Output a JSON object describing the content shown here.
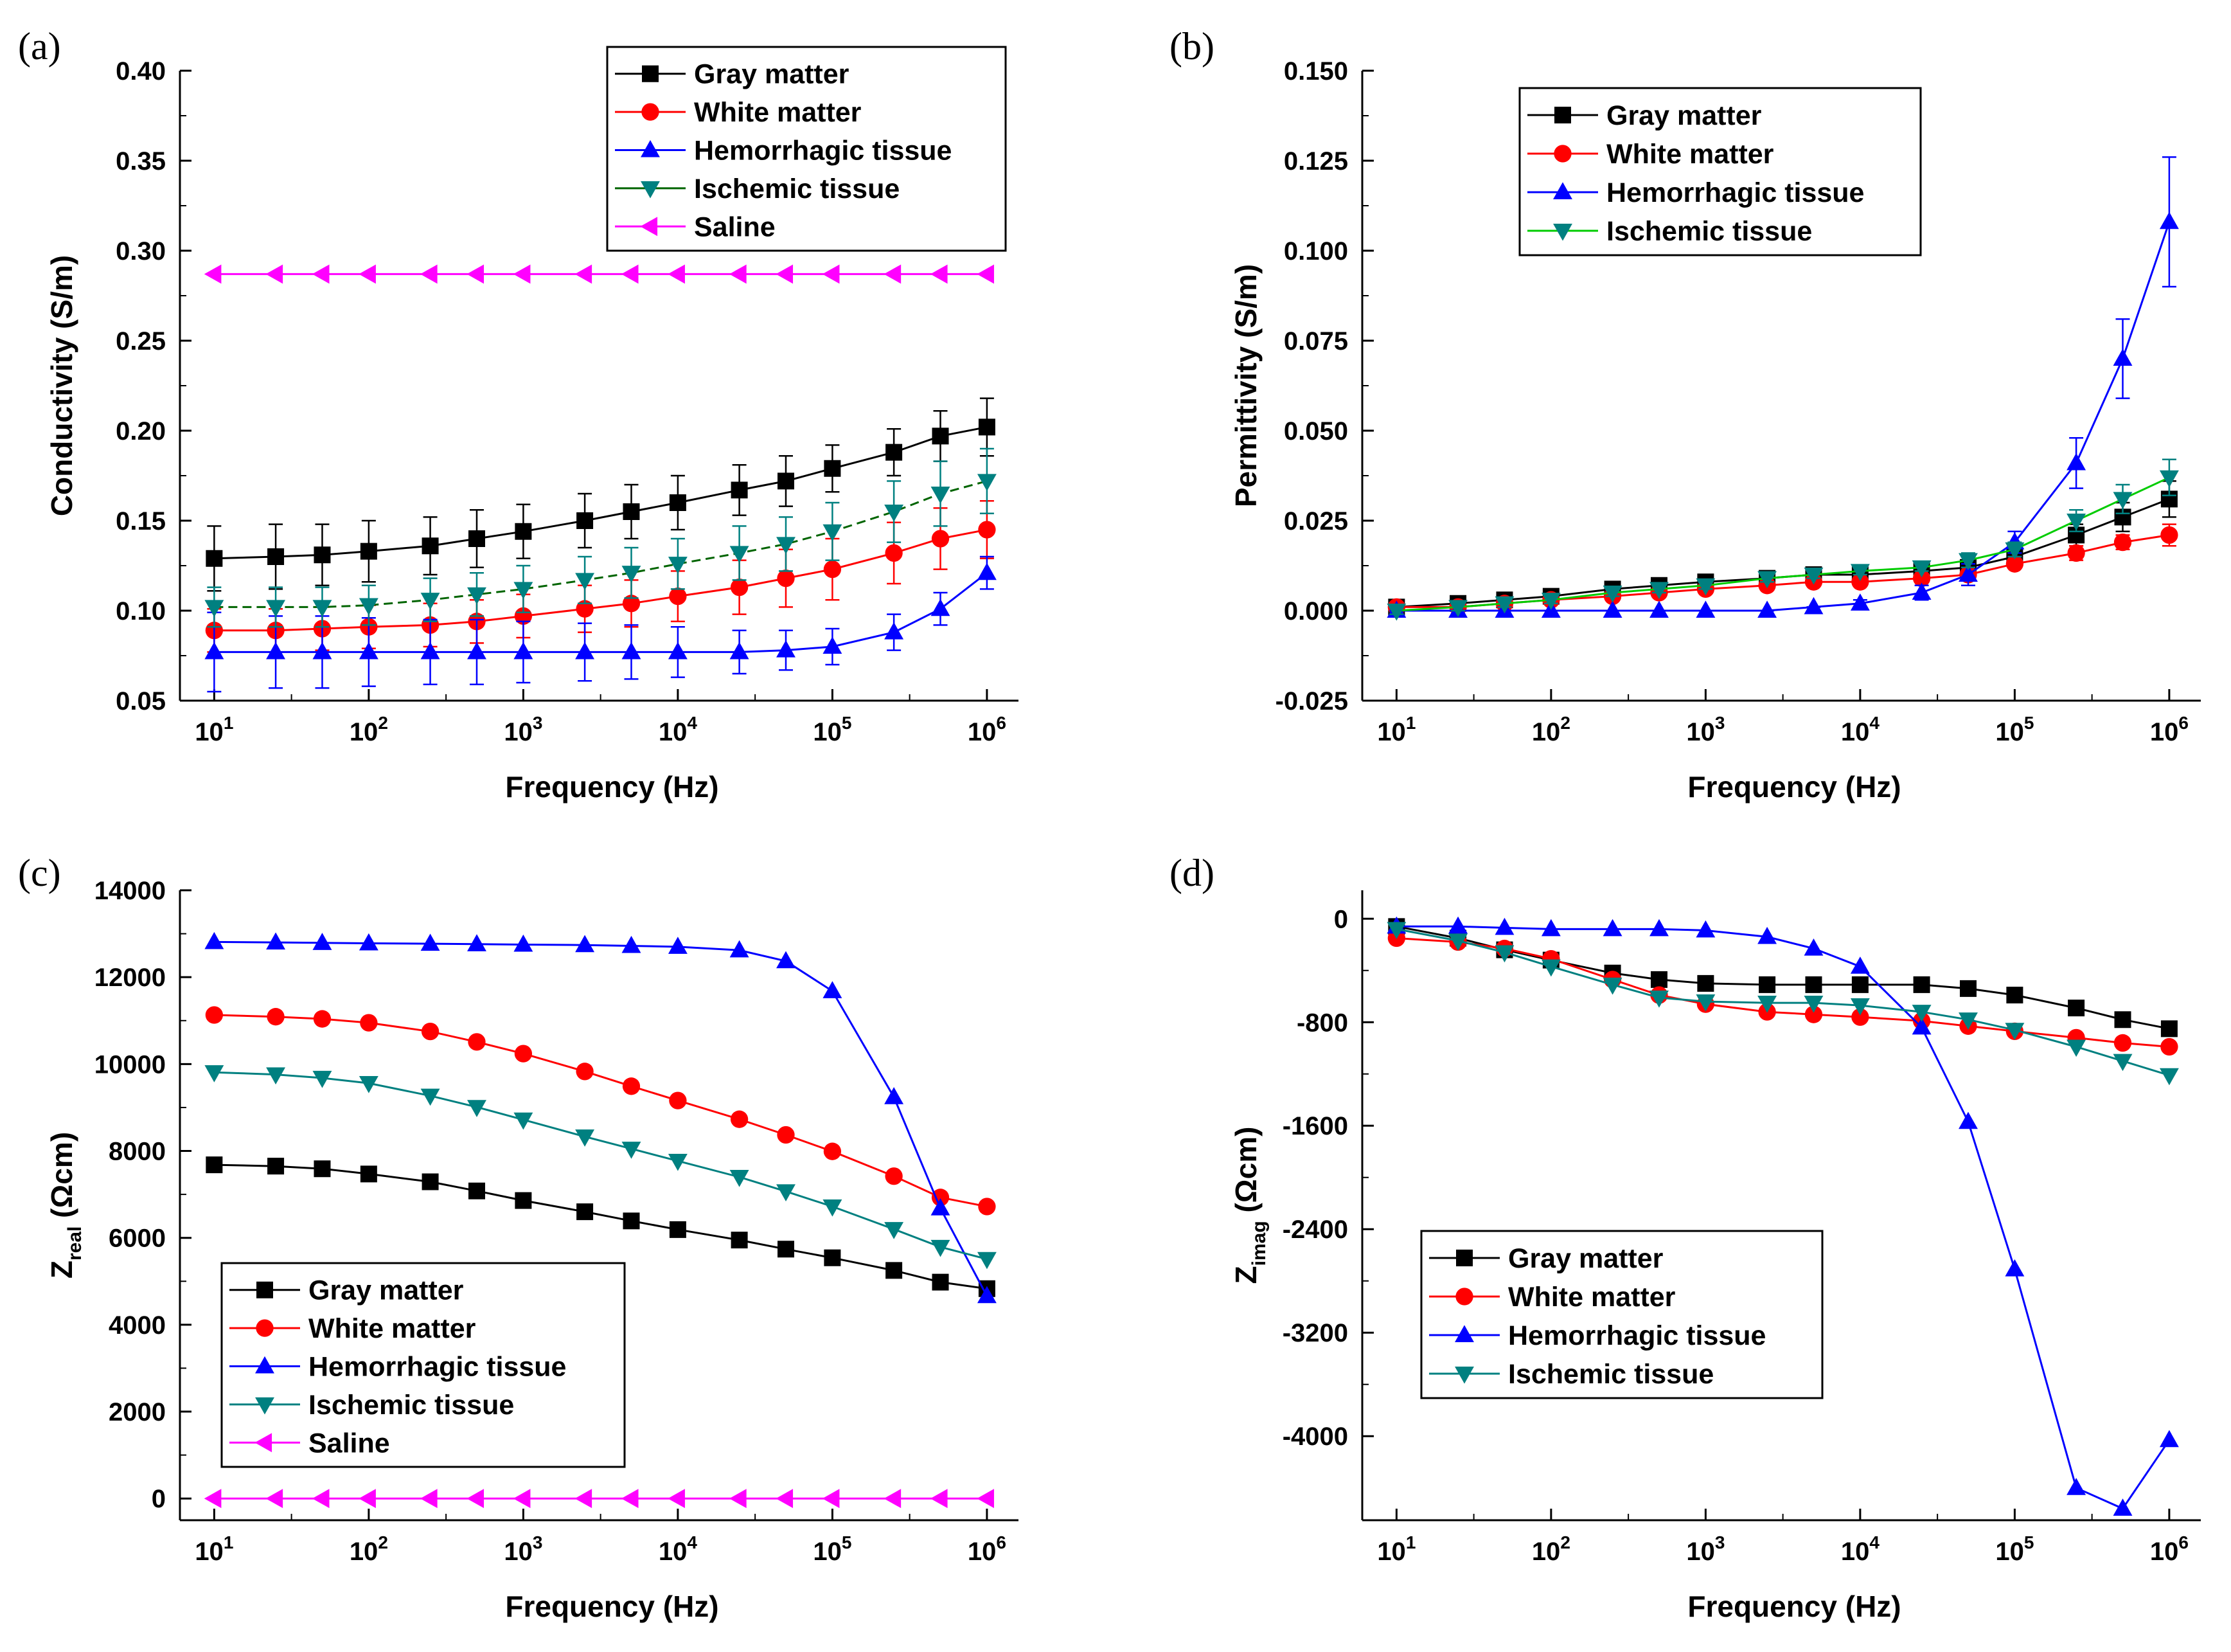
{
  "figure_title": "",
  "chart_data": [
    {
      "id": "a",
      "panel_label": "(a)",
      "type": "line",
      "xscale": "log",
      "xlim": [
        6,
        1600000
      ],
      "x": [
        10,
        25,
        50,
        100,
        250,
        500,
        1000,
        2500,
        5000,
        10000,
        25000,
        50000,
        100000,
        250000,
        500000,
        1000000
      ],
      "xticks": [
        10,
        100,
        1000,
        10000,
        100000,
        1000000
      ],
      "xtick_labels": [
        {
          "base": "10",
          "exp": "1"
        },
        {
          "base": "10",
          "exp": "2"
        },
        {
          "base": "10",
          "exp": "3"
        },
        {
          "base": "10",
          "exp": "4"
        },
        {
          "base": "10",
          "exp": "5"
        },
        {
          "base": "10",
          "exp": "6"
        }
      ],
      "ylim": [
        0.05,
        0.4
      ],
      "yticks": [
        0.05,
        0.1,
        0.15,
        0.2,
        0.25,
        0.3,
        0.35,
        0.4
      ],
      "ytick_labels": [
        "0.05",
        "0.10",
        "0.15",
        "0.20",
        "0.25",
        "0.30",
        "0.35",
        "0.40"
      ],
      "xlabel": "Frequency (Hz)",
      "ylabel": {
        "main": "Conductivity (S/m)",
        "sub": ""
      },
      "legend_position": "top-right",
      "series": [
        {
          "name": "Gray matter",
          "color": "#000000",
          "marker": "square",
          "values": [
            0.129,
            0.13,
            0.131,
            0.133,
            0.136,
            0.14,
            0.144,
            0.15,
            0.155,
            0.16,
            0.167,
            0.172,
            0.179,
            0.188,
            0.197,
            0.202
          ],
          "err": [
            0.018,
            0.018,
            0.017,
            0.017,
            0.016,
            0.016,
            0.015,
            0.015,
            0.015,
            0.015,
            0.014,
            0.014,
            0.013,
            0.013,
            0.014,
            0.016
          ]
        },
        {
          "name": "White matter",
          "color": "#ff0000",
          "marker": "circle",
          "values": [
            0.089,
            0.089,
            0.09,
            0.091,
            0.092,
            0.094,
            0.097,
            0.101,
            0.104,
            0.108,
            0.113,
            0.118,
            0.123,
            0.132,
            0.14,
            0.145
          ],
          "err": [
            0.012,
            0.012,
            0.012,
            0.012,
            0.012,
            0.012,
            0.012,
            0.013,
            0.013,
            0.014,
            0.015,
            0.016,
            0.017,
            0.017,
            0.017,
            0.016
          ]
        },
        {
          "name": "Hemorrhagic  tissue",
          "color": "#0000ff",
          "marker": "triangle-up",
          "values": [
            0.077,
            0.077,
            0.077,
            0.077,
            0.077,
            0.077,
            0.077,
            0.077,
            0.077,
            0.077,
            0.077,
            0.078,
            0.08,
            0.088,
            0.101,
            0.121
          ],
          "err": [
            0.022,
            0.02,
            0.02,
            0.019,
            0.018,
            0.018,
            0.017,
            0.016,
            0.015,
            0.014,
            0.012,
            0.011,
            0.01,
            0.01,
            0.009,
            0.009
          ]
        },
        {
          "name": "Ischemic tissue",
          "color": "#008080",
          "line_color": "#006400",
          "line_style": "dashed",
          "marker": "triangle-down",
          "values": [
            0.102,
            0.102,
            0.102,
            0.103,
            0.106,
            0.109,
            0.112,
            0.117,
            0.121,
            0.126,
            0.132,
            0.137,
            0.144,
            0.155,
            0.165,
            0.172
          ],
          "err": [
            0.011,
            0.011,
            0.011,
            0.011,
            0.012,
            0.012,
            0.013,
            0.013,
            0.014,
            0.014,
            0.015,
            0.015,
            0.016,
            0.017,
            0.018,
            0.018
          ]
        },
        {
          "name": "Saline",
          "color": "#ff00ff",
          "marker": "triangle-left",
          "values": [
            0.287,
            0.287,
            0.287,
            0.287,
            0.287,
            0.287,
            0.287,
            0.287,
            0.287,
            0.287,
            0.287,
            0.287,
            0.287,
            0.287,
            0.287,
            0.287
          ],
          "err": []
        }
      ]
    },
    {
      "id": "b",
      "panel_label": "(b)",
      "type": "line",
      "xscale": "log",
      "xlim": [
        6,
        1600000
      ],
      "x": [
        10,
        25,
        50,
        100,
        250,
        500,
        1000,
        2500,
        5000,
        10000,
        25000,
        50000,
        100000,
        250000,
        500000,
        1000000
      ],
      "xticks": [
        10,
        100,
        1000,
        10000,
        100000,
        1000000
      ],
      "xtick_labels": [
        {
          "base": "10",
          "exp": "1"
        },
        {
          "base": "10",
          "exp": "2"
        },
        {
          "base": "10",
          "exp": "3"
        },
        {
          "base": "10",
          "exp": "4"
        },
        {
          "base": "10",
          "exp": "5"
        },
        {
          "base": "10",
          "exp": "6"
        }
      ],
      "ylim": [
        -0.025,
        0.15
      ],
      "yticks": [
        -0.025,
        0.0,
        0.025,
        0.05,
        0.075,
        0.1,
        0.125,
        0.15
      ],
      "ytick_labels": [
        "-0.025",
        "0.000",
        "0.025",
        "0.050",
        "0.075",
        "0.100",
        "0.125",
        "0.150"
      ],
      "xlabel": "Frequency (Hz)",
      "ylabel": {
        "main": "Permittivity (S/m)",
        "sub": ""
      },
      "legend_position": "top-left",
      "series": [
        {
          "name": "Gray matter",
          "color": "#000000",
          "marker": "square",
          "values": [
            0.001,
            0.002,
            0.003,
            0.004,
            0.006,
            0.007,
            0.008,
            0.009,
            0.01,
            0.01,
            0.011,
            0.012,
            0.015,
            0.021,
            0.026,
            0.031
          ],
          "err": [
            0.001,
            0.001,
            0.001,
            0.001,
            0.001,
            0.001,
            0.001,
            0.001,
            0.001,
            0.001,
            0.001,
            0.002,
            0.002,
            0.003,
            0.004,
            0.005
          ]
        },
        {
          "name": "White matter",
          "color": "#ff0000",
          "marker": "circle",
          "values": [
            0.001,
            0.001,
            0.002,
            0.003,
            0.004,
            0.005,
            0.006,
            0.007,
            0.008,
            0.008,
            0.009,
            0.01,
            0.013,
            0.016,
            0.019,
            0.021
          ],
          "err": [
            0.001,
            0.001,
            0.001,
            0.001,
            0.001,
            0.001,
            0.001,
            0.001,
            0.001,
            0.001,
            0.001,
            0.001,
            0.001,
            0.002,
            0.002,
            0.003
          ]
        },
        {
          "name": "Hemorrhagic  tissue",
          "color": "#0000ff",
          "marker": "triangle-up",
          "values": [
            0.0,
            0.0,
            0.0,
            0.0,
            0.0,
            0.0,
            0.0,
            0.0,
            0.001,
            0.002,
            0.005,
            0.01,
            0.019,
            0.041,
            0.07,
            0.108
          ],
          "err": [
            0.0,
            0.0,
            0.0,
            0.0,
            0.0,
            0.0,
            0.0,
            0.0,
            0.0,
            0.001,
            0.002,
            0.003,
            0.003,
            0.007,
            0.011,
            0.018
          ]
        },
        {
          "name": "Ischemic tissue",
          "color": "#008080",
          "line_color": "#00cc00",
          "marker": "triangle-down",
          "values": [
            0.0,
            0.001,
            0.002,
            0.003,
            0.005,
            0.006,
            0.007,
            0.009,
            0.01,
            0.011,
            0.012,
            0.014,
            0.017,
            0.025,
            0.031,
            0.037
          ],
          "err": [
            0.001,
            0.001,
            0.001,
            0.001,
            0.001,
            0.001,
            0.001,
            0.001,
            0.001,
            0.001,
            0.001,
            0.002,
            0.002,
            0.003,
            0.004,
            0.005
          ]
        }
      ]
    },
    {
      "id": "c",
      "panel_label": "(c)",
      "type": "line",
      "xscale": "log",
      "xlim": [
        6,
        1600000
      ],
      "x": [
        10,
        25,
        50,
        100,
        250,
        500,
        1000,
        2500,
        5000,
        10000,
        25000,
        50000,
        100000,
        250000,
        500000,
        1000000
      ],
      "xticks": [
        10,
        100,
        1000,
        10000,
        100000,
        1000000
      ],
      "xtick_labels": [
        {
          "base": "10",
          "exp": "1"
        },
        {
          "base": "10",
          "exp": "2"
        },
        {
          "base": "10",
          "exp": "3"
        },
        {
          "base": "10",
          "exp": "4"
        },
        {
          "base": "10",
          "exp": "5"
        },
        {
          "base": "10",
          "exp": "6"
        }
      ],
      "ylim": [
        -500,
        14000
      ],
      "yticks": [
        0,
        2000,
        4000,
        6000,
        8000,
        10000,
        12000,
        14000
      ],
      "ytick_labels": [
        "0",
        "2000",
        "4000",
        "6000",
        "8000",
        "10000",
        "12000",
        "14000"
      ],
      "xlabel": "Frequency (Hz)",
      "ylabel": {
        "main": "Z",
        "sub": "real",
        "unit": " (Ωcm)"
      },
      "legend_position": "bottom-left",
      "series": [
        {
          "name": "Gray matter",
          "color": "#000000",
          "marker": "square",
          "values": [
            7680,
            7650,
            7590,
            7470,
            7290,
            7080,
            6860,
            6600,
            6390,
            6190,
            5950,
            5740,
            5540,
            5250,
            4980,
            4830
          ],
          "err": []
        },
        {
          "name": "White matter",
          "color": "#ff0000",
          "marker": "circle",
          "values": [
            11130,
            11090,
            11040,
            10950,
            10750,
            10510,
            10240,
            9830,
            9490,
            9160,
            8730,
            8370,
            7990,
            7420,
            6930,
            6720
          ],
          "err": []
        },
        {
          "name": "Hemorrhagic  tissue",
          "color": "#0000ff",
          "marker": "triangle-up",
          "values": [
            12810,
            12800,
            12790,
            12780,
            12770,
            12760,
            12750,
            12740,
            12720,
            12700,
            12620,
            12370,
            11680,
            9240,
            6680,
            4660
          ],
          "err": []
        },
        {
          "name": "Ischemic tissue",
          "color": "#008080",
          "marker": "triangle-down",
          "values": [
            9810,
            9760,
            9680,
            9560,
            9270,
            9010,
            8720,
            8330,
            8050,
            7770,
            7400,
            7070,
            6720,
            6200,
            5790,
            5510
          ],
          "err": []
        },
        {
          "name": "Saline",
          "color": "#ff00ff",
          "marker": "triangle-left",
          "values": [
            0,
            0,
            0,
            0,
            0,
            0,
            0,
            0,
            0,
            0,
            0,
            0,
            0,
            0,
            0,
            0
          ],
          "err": []
        }
      ]
    },
    {
      "id": "d",
      "panel_label": "(d)",
      "type": "line",
      "xscale": "log",
      "xlim": [
        6,
        1600000
      ],
      "x": [
        10,
        25,
        50,
        100,
        250,
        500,
        1000,
        2500,
        5000,
        10000,
        25000,
        50000,
        100000,
        250000,
        500000,
        1000000
      ],
      "xticks": [
        10,
        100,
        1000,
        10000,
        100000,
        1000000
      ],
      "xtick_labels": [
        {
          "base": "10",
          "exp": "1"
        },
        {
          "base": "10",
          "exp": "2"
        },
        {
          "base": "10",
          "exp": "3"
        },
        {
          "base": "10",
          "exp": "4"
        },
        {
          "base": "10",
          "exp": "5"
        },
        {
          "base": "10",
          "exp": "6"
        }
      ],
      "ylim": [
        -4650,
        220
      ],
      "yticks": [
        -4000,
        -3200,
        -2400,
        -1600,
        -800,
        0
      ],
      "ytick_labels": [
        "-4000",
        "-3200",
        "-2400",
        "-1600",
        "-800",
        "0"
      ],
      "xlabel": "Frequency (Hz)",
      "ylabel": {
        "main": "Z",
        "sub": "imag",
        "unit": " (Ωcm)"
      },
      "legend_position": "center-left",
      "series": [
        {
          "name": "Gray matter",
          "color": "#000000",
          "marker": "square",
          "values": [
            -60,
            -150,
            -240,
            -320,
            -420,
            -470,
            -500,
            -510,
            -510,
            -510,
            -510,
            -540,
            -590,
            -690,
            -780,
            -850
          ],
          "err": []
        },
        {
          "name": "White matter",
          "color": "#ff0000",
          "marker": "circle",
          "values": [
            -150,
            -180,
            -230,
            -310,
            -470,
            -590,
            -660,
            -720,
            -740,
            -760,
            -790,
            -830,
            -870,
            -920,
            -960,
            -990
          ],
          "err": []
        },
        {
          "name": "Hemorrhagic  tissue",
          "color": "#0000ff",
          "marker": "triangle-up",
          "values": [
            -60,
            -60,
            -70,
            -80,
            -80,
            -80,
            -90,
            -140,
            -230,
            -370,
            -840,
            -1570,
            -2710,
            -4400,
            -4560,
            -4030
          ],
          "err": []
        },
        {
          "name": "Ischemic tissue",
          "color": "#008080",
          "marker": "triangle-down",
          "values": [
            -80,
            -170,
            -260,
            -370,
            -510,
            -610,
            -640,
            -650,
            -650,
            -670,
            -720,
            -780,
            -860,
            -990,
            -1100,
            -1210
          ],
          "err": []
        }
      ]
    }
  ]
}
